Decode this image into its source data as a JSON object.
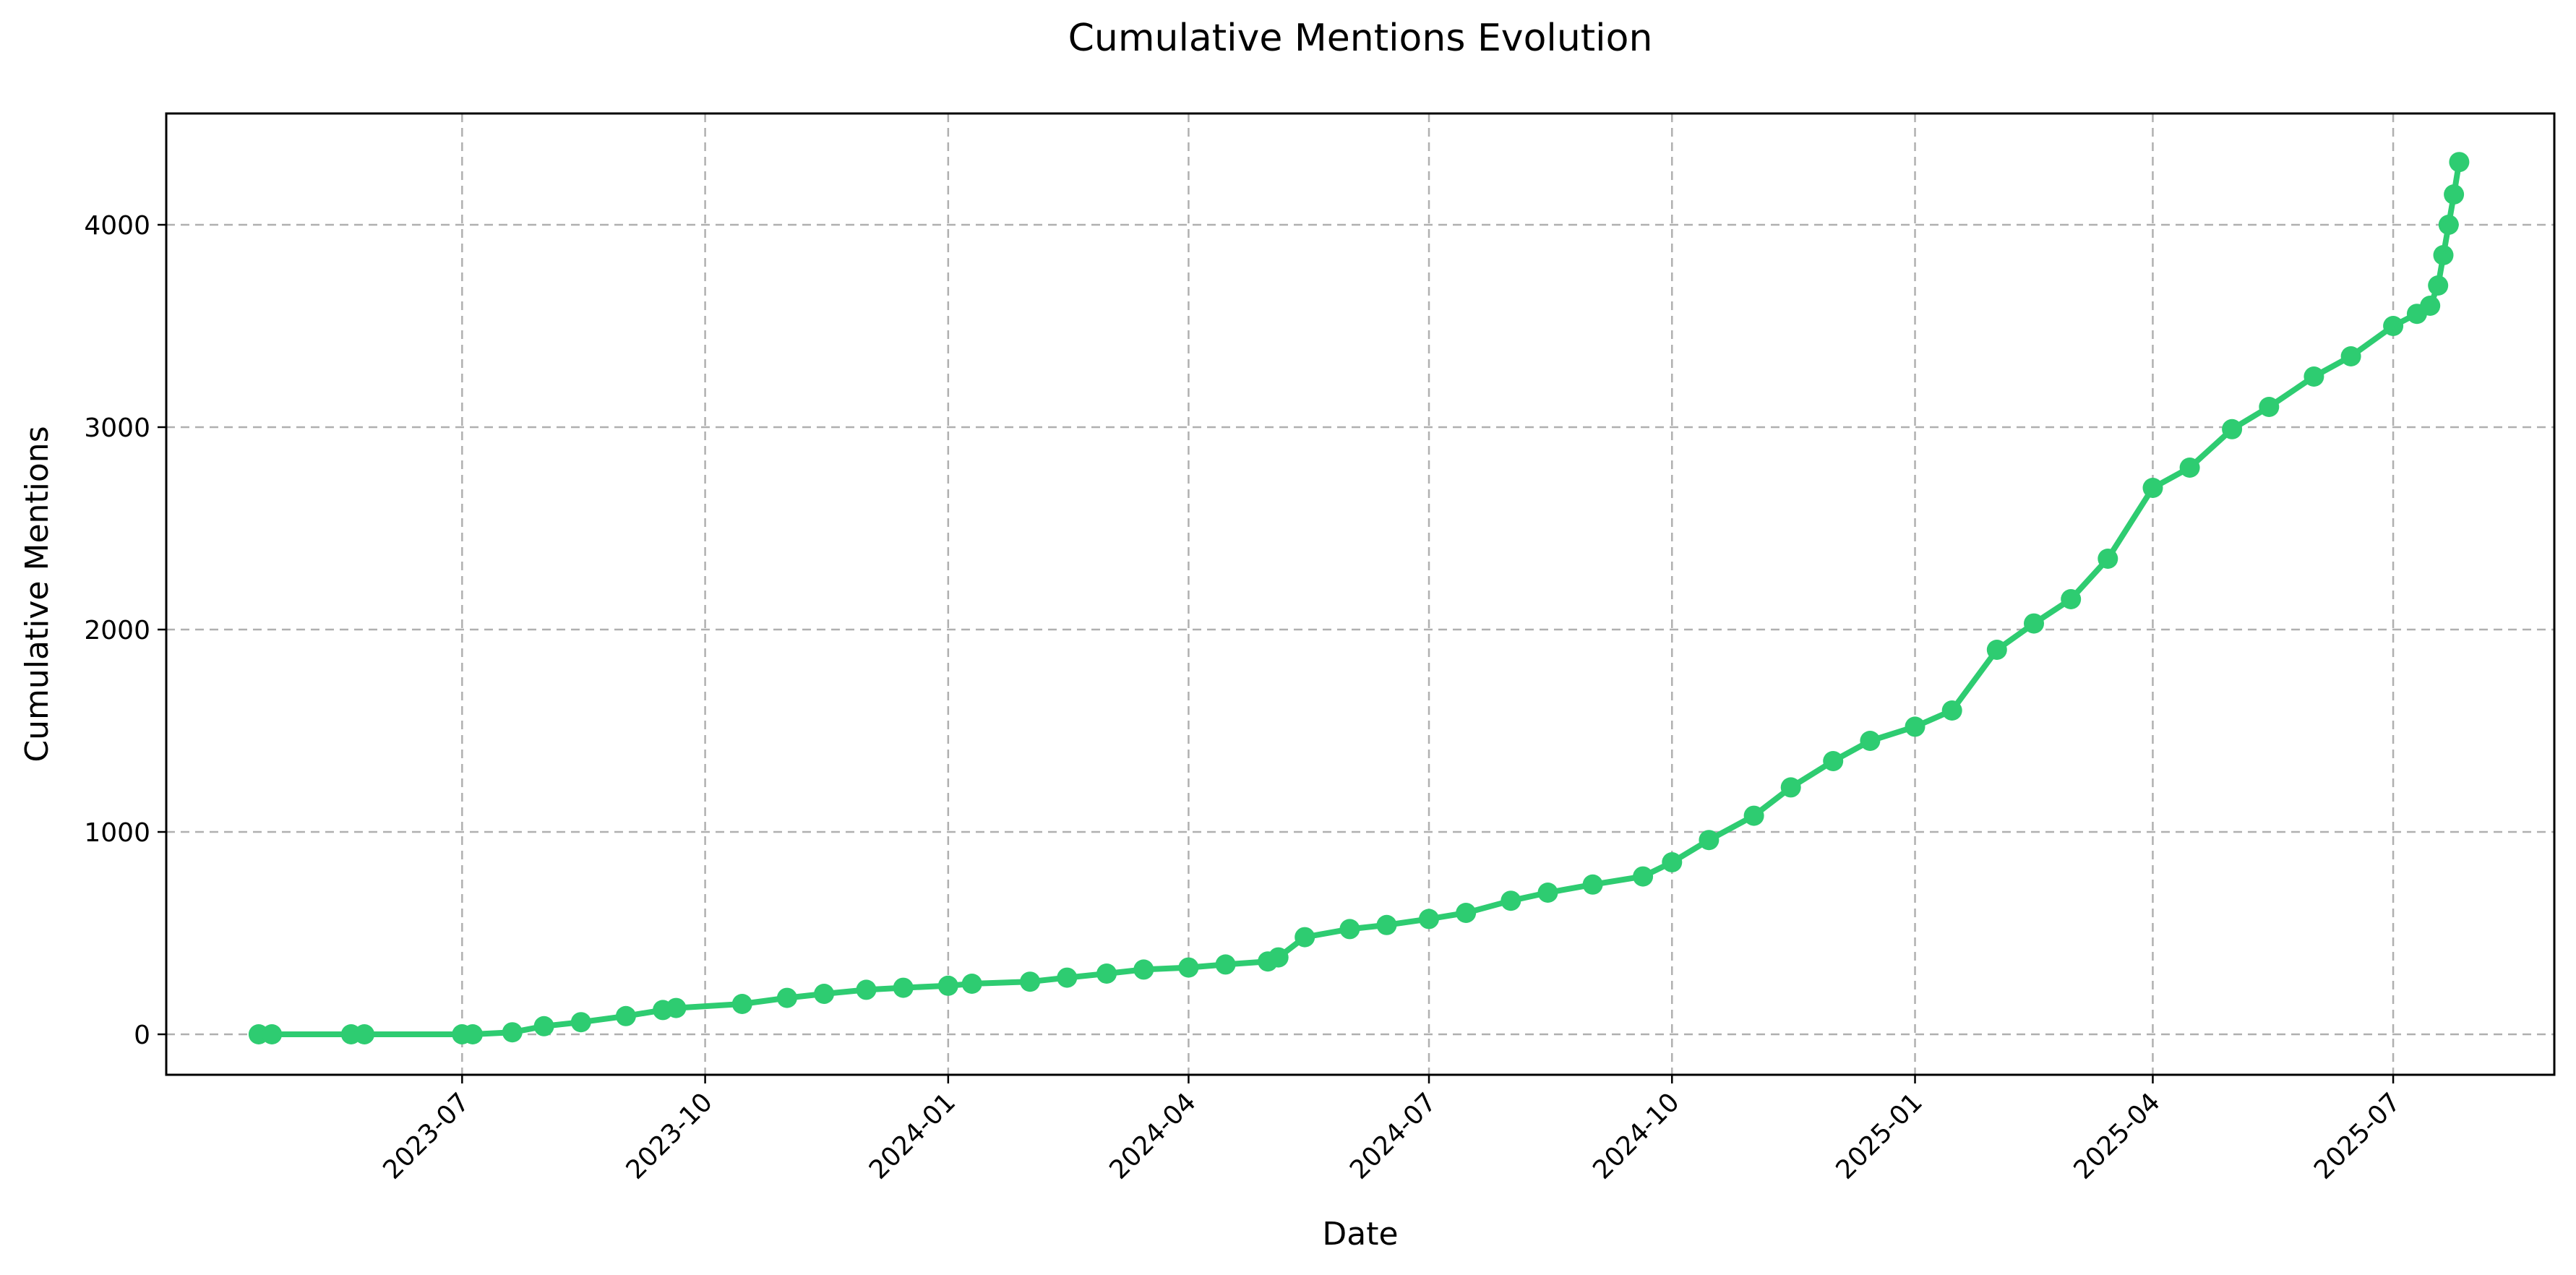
{
  "chart_data": {
    "type": "line",
    "title": "Cumulative Mentions Evolution",
    "xlabel": "Date",
    "ylabel": "Cumulative Mentions",
    "xlim": [
      "2023-03-11",
      "2025-08-31"
    ],
    "ylim": [
      -200,
      4550
    ],
    "grid": true,
    "legend": "none",
    "color": "#2ecc71",
    "x_ticks": [
      "2023-07",
      "2023-10",
      "2024-01",
      "2024-04",
      "2024-07",
      "2024-10",
      "2025-01",
      "2025-04",
      "2025-07"
    ],
    "y_ticks": [
      "0",
      "1000",
      "2000",
      "3000",
      "4000"
    ],
    "series": [
      {
        "x": [
          "2023-04-15",
          "2023-04-20",
          "2023-05-20",
          "2023-05-25",
          "2023-07-01",
          "2023-07-05",
          "2023-07-20",
          "2023-08-01",
          "2023-08-15",
          "2023-09-01",
          "2023-09-15",
          "2023-09-20",
          "2023-10-15",
          "2023-11-01",
          "2023-11-15",
          "2023-12-01",
          "2023-12-15",
          "2024-01-01",
          "2024-01-10",
          "2024-02-01",
          "2024-02-15",
          "2024-03-01",
          "2024-03-15",
          "2024-04-01",
          "2024-04-15",
          "2024-05-01",
          "2024-05-05",
          "2024-05-15",
          "2024-06-01",
          "2024-06-15",
          "2024-07-01",
          "2024-07-15",
          "2024-08-01",
          "2024-08-15",
          "2024-09-01",
          "2024-09-20",
          "2024-10-01",
          "2024-10-15",
          "2024-11-01",
          "2024-11-15",
          "2024-12-01",
          "2024-12-15",
          "2025-01-01",
          "2025-01-15",
          "2025-02-01",
          "2025-02-15",
          "2025-03-01",
          "2025-03-15",
          "2025-04-01",
          "2025-04-15",
          "2025-05-01",
          "2025-05-15",
          "2025-06-01",
          "2025-06-15",
          "2025-07-01",
          "2025-07-10",
          "2025-07-15",
          "2025-07-18",
          "2025-07-20",
          "2025-07-22",
          "2025-07-24",
          "2025-07-26"
        ],
        "y": [
          0,
          0,
          0,
          0,
          0,
          0,
          10,
          40,
          60,
          90,
          120,
          130,
          150,
          180,
          200,
          220,
          230,
          240,
          250,
          260,
          280,
          300,
          320,
          330,
          345,
          360,
          380,
          480,
          520,
          540,
          570,
          600,
          660,
          700,
          740,
          780,
          850,
          960,
          1080,
          1220,
          1350,
          1450,
          1520,
          1600,
          1900,
          2030,
          2150,
          2350,
          2700,
          2800,
          2990,
          3100,
          3250,
          3350,
          3500,
          3560,
          3600,
          3700,
          3850,
          4000,
          4150,
          4310
        ]
      }
    ]
  }
}
